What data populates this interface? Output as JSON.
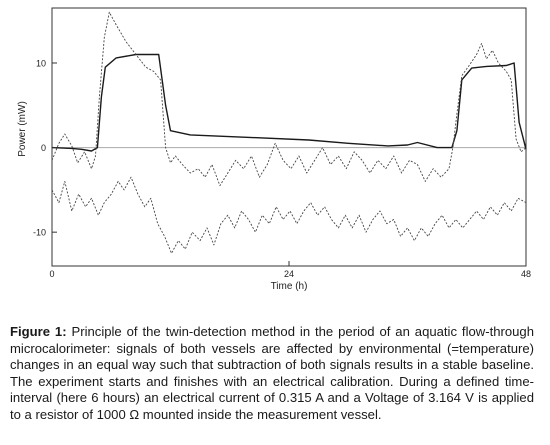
{
  "chart_data": {
    "type": "line",
    "title": "",
    "xlabel": "Time (h)",
    "ylabel": "Power (mW)",
    "xlim": [
      0,
      48
    ],
    "ylim": [
      -14,
      16.5
    ],
    "xticks": [
      0,
      24,
      48
    ],
    "yticks": [
      10,
      0,
      -10
    ],
    "grid": false,
    "legend": "none",
    "zero_line": true,
    "series": [
      {
        "role": "differential signal (solid)",
        "color": "#1a1a1a",
        "dash": "",
        "points": [
          [
            0,
            0.0
          ],
          [
            2,
            -0.1
          ],
          [
            3,
            -0.2
          ],
          [
            4,
            -0.4
          ],
          [
            4.6,
            0
          ],
          [
            5.0,
            6.0
          ],
          [
            5.4,
            9.5
          ],
          [
            6.5,
            10.6
          ],
          [
            8.5,
            11.0
          ],
          [
            10.8,
            11.0
          ],
          [
            11.5,
            5.0
          ],
          [
            12.0,
            2.0
          ],
          [
            14,
            1.5
          ],
          [
            20,
            1.2
          ],
          [
            26,
            0.9
          ],
          [
            30,
            0.5
          ],
          [
            34,
            0.2
          ],
          [
            36,
            0.3
          ],
          [
            37,
            0.6
          ],
          [
            39,
            0.0
          ],
          [
            40.5,
            0.0
          ],
          [
            41.0,
            2.0
          ],
          [
            41.5,
            8.0
          ],
          [
            42.5,
            9.4
          ],
          [
            44,
            9.6
          ],
          [
            46,
            9.7
          ],
          [
            46.8,
            10.0
          ],
          [
            47.3,
            3.0
          ],
          [
            48,
            -0.2
          ]
        ]
      },
      {
        "role": "measurement vessel signal (dotted)",
        "color": "#444444",
        "dash": "2,1.6",
        "points": [
          [
            0,
            -1.5
          ],
          [
            0.7,
            0.5
          ],
          [
            1.3,
            1.6
          ],
          [
            2,
            0.2
          ],
          [
            2.6,
            -1.8
          ],
          [
            3.3,
            -0.5
          ],
          [
            4,
            -2.5
          ],
          [
            4.4,
            -1.0
          ],
          [
            4.8,
            6.0
          ],
          [
            5.3,
            13.0
          ],
          [
            5.8,
            16.0
          ],
          [
            6.5,
            14.5
          ],
          [
            7.5,
            12.5
          ],
          [
            8.5,
            11.0
          ],
          [
            9.5,
            9.5
          ],
          [
            10.3,
            9.0
          ],
          [
            11.0,
            8.0
          ],
          [
            11.5,
            0.0
          ],
          [
            12.0,
            -1.8
          ],
          [
            12.5,
            -1.0
          ],
          [
            13.2,
            -2.0
          ],
          [
            14,
            -3.0
          ],
          [
            14.8,
            -2.5
          ],
          [
            15.5,
            -3.5
          ],
          [
            16.2,
            -2.0
          ],
          [
            17,
            -4.5
          ],
          [
            17.8,
            -3.0
          ],
          [
            18.6,
            -1.5
          ],
          [
            19.4,
            -2.5
          ],
          [
            20.2,
            -1.0
          ],
          [
            21,
            -3.5
          ],
          [
            21.8,
            -2.0
          ],
          [
            22.6,
            0.5
          ],
          [
            23.4,
            -1.5
          ],
          [
            24.2,
            -2.5
          ],
          [
            25,
            -1.0
          ],
          [
            25.8,
            -3.0
          ],
          [
            26.6,
            -1.5
          ],
          [
            27.4,
            0.0
          ],
          [
            28.2,
            -2.0
          ],
          [
            29,
            -1.0
          ],
          [
            29.8,
            -2.5
          ],
          [
            30.6,
            -0.5
          ],
          [
            31.4,
            -1.5
          ],
          [
            32.2,
            -3.0
          ],
          [
            33,
            -1.5
          ],
          [
            33.8,
            -2.5
          ],
          [
            34.6,
            -1.0
          ],
          [
            35.4,
            -3.0
          ],
          [
            36.2,
            -1.5
          ],
          [
            37,
            -2.0
          ],
          [
            37.8,
            -4.0
          ],
          [
            38.6,
            -2.5
          ],
          [
            39.4,
            -3.5
          ],
          [
            40.2,
            -2.5
          ],
          [
            40.6,
            0.0
          ],
          [
            41.0,
            4.0
          ],
          [
            41.5,
            8.5
          ],
          [
            42.3,
            9.8
          ],
          [
            43,
            11.0
          ],
          [
            43.5,
            12.3
          ],
          [
            44,
            10.5
          ],
          [
            44.6,
            11.5
          ],
          [
            45.2,
            10.0
          ],
          [
            46,
            9.0
          ],
          [
            46.5,
            8.0
          ],
          [
            47.0,
            1.0
          ],
          [
            47.5,
            -0.5
          ],
          [
            48,
            0.0
          ]
        ]
      },
      {
        "role": "reference vessel signal (dotted)",
        "color": "#444444",
        "dash": "2,1.6",
        "points": [
          [
            0,
            -5.0
          ],
          [
            0.7,
            -6.5
          ],
          [
            1.3,
            -4.0
          ],
          [
            2,
            -7.5
          ],
          [
            2.7,
            -5.5
          ],
          [
            3.4,
            -7.0
          ],
          [
            4,
            -6.0
          ],
          [
            4.7,
            -8.0
          ],
          [
            5.3,
            -6.5
          ],
          [
            6,
            -5.5
          ],
          [
            6.7,
            -4.0
          ],
          [
            7.3,
            -5.0
          ],
          [
            8,
            -3.5
          ],
          [
            8.7,
            -5.5
          ],
          [
            9.4,
            -7.0
          ],
          [
            10,
            -6.0
          ],
          [
            10.7,
            -9.0
          ],
          [
            11.4,
            -10.5
          ],
          [
            12.1,
            -12.5
          ],
          [
            12.8,
            -11.0
          ],
          [
            13.5,
            -12.0
          ],
          [
            14.2,
            -10.0
          ],
          [
            15,
            -11.0
          ],
          [
            15.7,
            -9.5
          ],
          [
            16.4,
            -11.5
          ],
          [
            17.1,
            -9.0
          ],
          [
            17.8,
            -8.0
          ],
          [
            18.5,
            -9.5
          ],
          [
            19.2,
            -7.5
          ],
          [
            19.9,
            -8.5
          ],
          [
            20.6,
            -10.0
          ],
          [
            21.3,
            -8.0
          ],
          [
            22,
            -9.0
          ],
          [
            22.7,
            -7.0
          ],
          [
            23.4,
            -8.5
          ],
          [
            24.1,
            -7.5
          ],
          [
            24.8,
            -9.0
          ],
          [
            25.5,
            -7.5
          ],
          [
            26.2,
            -6.5
          ],
          [
            26.9,
            -8.0
          ],
          [
            27.6,
            -7.0
          ],
          [
            28.3,
            -8.5
          ],
          [
            29,
            -9.5
          ],
          [
            29.7,
            -8.0
          ],
          [
            30.4,
            -9.5
          ],
          [
            31.1,
            -8.0
          ],
          [
            31.8,
            -10.0
          ],
          [
            32.5,
            -8.5
          ],
          [
            33.2,
            -7.5
          ],
          [
            33.9,
            -9.0
          ],
          [
            34.6,
            -8.5
          ],
          [
            35.3,
            -10.5
          ],
          [
            36,
            -9.5
          ],
          [
            36.7,
            -11.0
          ],
          [
            37.4,
            -9.5
          ],
          [
            38.1,
            -10.5
          ],
          [
            38.8,
            -9.0
          ],
          [
            39.5,
            -8.0
          ],
          [
            40.2,
            -9.5
          ],
          [
            40.9,
            -8.5
          ],
          [
            41.6,
            -9.5
          ],
          [
            42.3,
            -8.5
          ],
          [
            43,
            -7.5
          ],
          [
            43.7,
            -8.5
          ],
          [
            44.4,
            -7.0
          ],
          [
            45.1,
            -8.0
          ],
          [
            45.8,
            -6.5
          ],
          [
            46.5,
            -7.5
          ],
          [
            47.2,
            -6.0
          ],
          [
            48,
            -6.5
          ]
        ]
      }
    ]
  },
  "caption": {
    "label": "Figure 1:",
    "text": "Principle of the twin-detection method in the period of an aquatic flow-through microcalorimeter: signals of both vessels are affected by environmental (=temperature) changes in an equal way such that subtraction of both signals results in a stable baseline. The experiment starts and finishes with an electrical calibration. During a defined time-interval (here 6 hours) an electrical current of 0.315 A and a Voltage of 3.164 V is applied to a resistor of 1000 Ω mounted inside the measurement vessel."
  }
}
